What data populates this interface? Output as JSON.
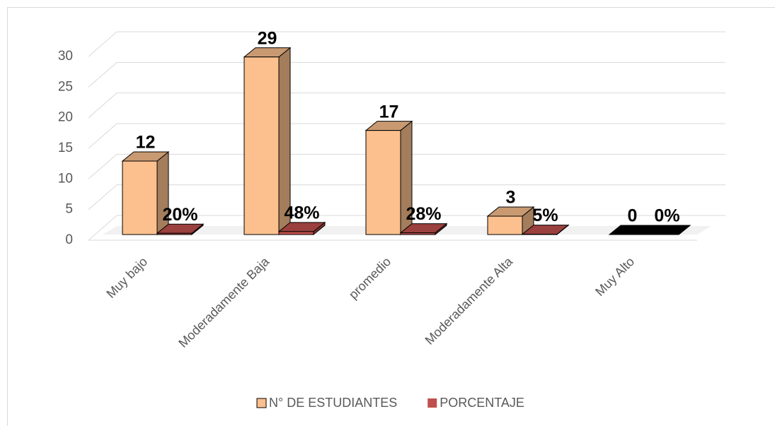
{
  "chart_data": {
    "type": "bar3d",
    "categories": [
      "Muy bajo",
      "Moderadamente Baja",
      "promedio",
      "Moderadamente Alta",
      "Muy Alto"
    ],
    "series": [
      {
        "name": "N° DE ESTUDIANTES",
        "color": "#fbc08e",
        "values": [
          12,
          29,
          17,
          3,
          0
        ]
      },
      {
        "name": "PORCENTAJE",
        "color": "#c0504d",
        "values": [
          0.2,
          0.48,
          0.28,
          0.05,
          0
        ],
        "value_labels": [
          "20%",
          "48%",
          "28%",
          "5%",
          "0%"
        ]
      }
    ],
    "ylim": [
      0,
      30
    ],
    "yticks": [
      0,
      5,
      10,
      15,
      20,
      25,
      30
    ],
    "grid": true,
    "legend": "bottom"
  }
}
